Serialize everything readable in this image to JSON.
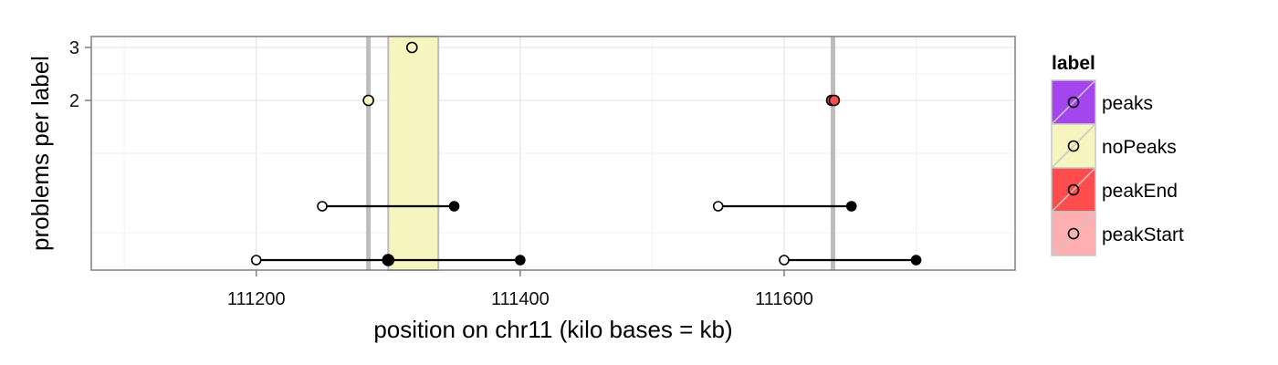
{
  "chart_data": {
    "type": "scatter",
    "xlabel": "position on chr11 (kilo bases = kb)",
    "ylabel": "problems per label",
    "xlim": [
      111075,
      111775
    ],
    "x_ticks": [
      111200,
      111400,
      111600
    ],
    "x_tick_labels": [
      "111200",
      "111400",
      "111600"
    ],
    "y_ticks": [
      2,
      3
    ],
    "y_tick_labels": [
      "2",
      "3"
    ],
    "y_scale": "nonlinear",
    "grid": true,
    "legend": {
      "title": "label",
      "placement": "right",
      "entries": [
        {
          "name": "peaks",
          "color": "#a445ee"
        },
        {
          "name": "noPeaks",
          "color": "#f6f4bf"
        },
        {
          "name": "peakEnd",
          "color": "#ff4c4c"
        },
        {
          "name": "peakStart",
          "color": "#ffafaf"
        }
      ]
    },
    "label_regions": [
      {
        "label": "noPeaks",
        "xmin": 111300,
        "xmax": 111338,
        "color": "#f6f4bf"
      }
    ],
    "breakpoint_lines": [
      111285,
      111637
    ],
    "segments": [
      {
        "problems": 0,
        "start": 111200,
        "end": 111400
      },
      {
        "problems": 0,
        "start": 111600,
        "end": 111700
      },
      {
        "problems": 1,
        "start": 111250,
        "end": 111350
      },
      {
        "problems": 1,
        "start": 111550,
        "end": 111651
      }
    ],
    "points": [
      {
        "x": 111318,
        "y": 3,
        "fill": "#f6f4bf"
      },
      {
        "x": 111285,
        "y": 2,
        "fill": "#f6f4bf"
      },
      {
        "x": 111636,
        "y": 2,
        "fill": "#ff4c4c"
      },
      {
        "x": 111638,
        "y": 2,
        "fill": "#ff4c4c"
      },
      {
        "x": 111300,
        "y": 0,
        "fill": "#000000"
      }
    ]
  }
}
